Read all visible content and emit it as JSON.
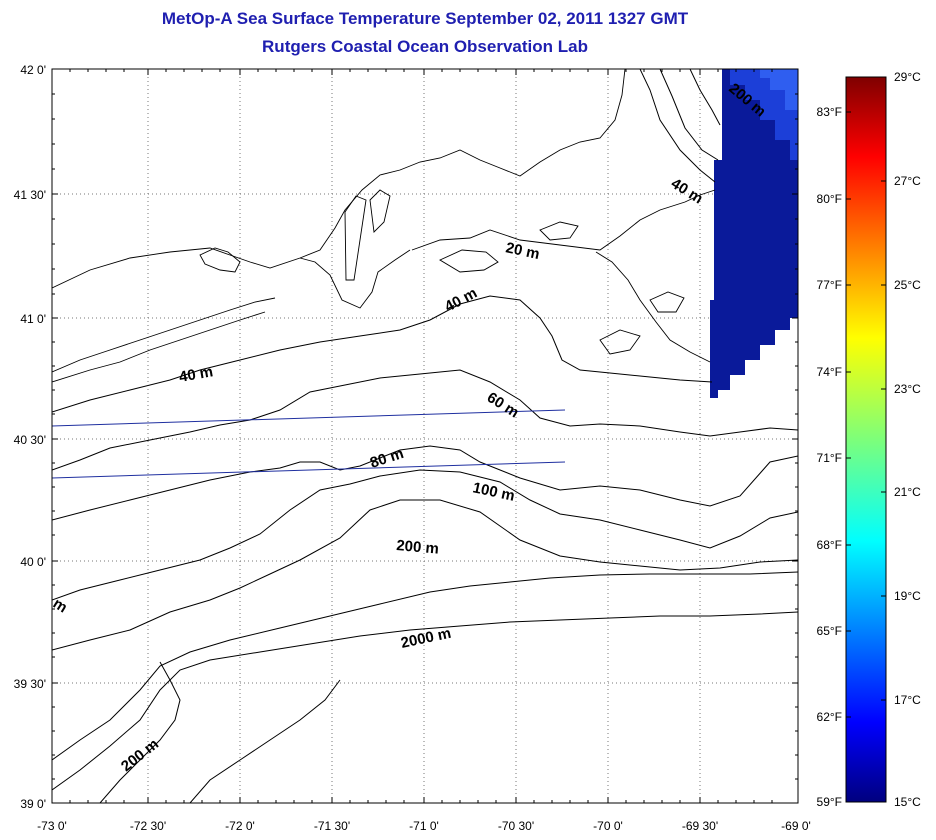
{
  "header": {
    "title": "MetOp-A Sea Surface Temperature September 02, 2011 1327 GMT",
    "subtitle": "Rutgers Coastal Ocean Observation Lab"
  },
  "map": {
    "lon_labels": [
      "-73 0'",
      "-72 30'",
      "-72 0'",
      "-71 30'",
      "-71 0'",
      "-70 30'",
      "-70 0'",
      "-69 30'",
      "-69 0'"
    ],
    "lat_labels": [
      "42 0'",
      "41 30'",
      "41 0'",
      "40 30'",
      "40 0'",
      "39 30'",
      "39 0'"
    ],
    "grid": "dotted",
    "contour_labels": [
      "20 m",
      "40 m",
      "40 m",
      "40 m",
      "60 m",
      "80 m",
      "100 m",
      "200 m",
      "200 m",
      "200 m",
      "2000 m",
      "m"
    ],
    "sst_patch_color": "#0a1a9a"
  },
  "colorbar": {
    "left_labels": [
      "83°F",
      "80°F",
      "77°F",
      "74°F",
      "71°F",
      "68°F",
      "65°F",
      "62°F",
      "59°F"
    ],
    "right_labels": [
      "29°C",
      "27°C",
      "25°C",
      "23°C",
      "21°C",
      "19°C",
      "17°C",
      "15°C"
    ],
    "min_c": 15,
    "max_c": 29
  }
}
